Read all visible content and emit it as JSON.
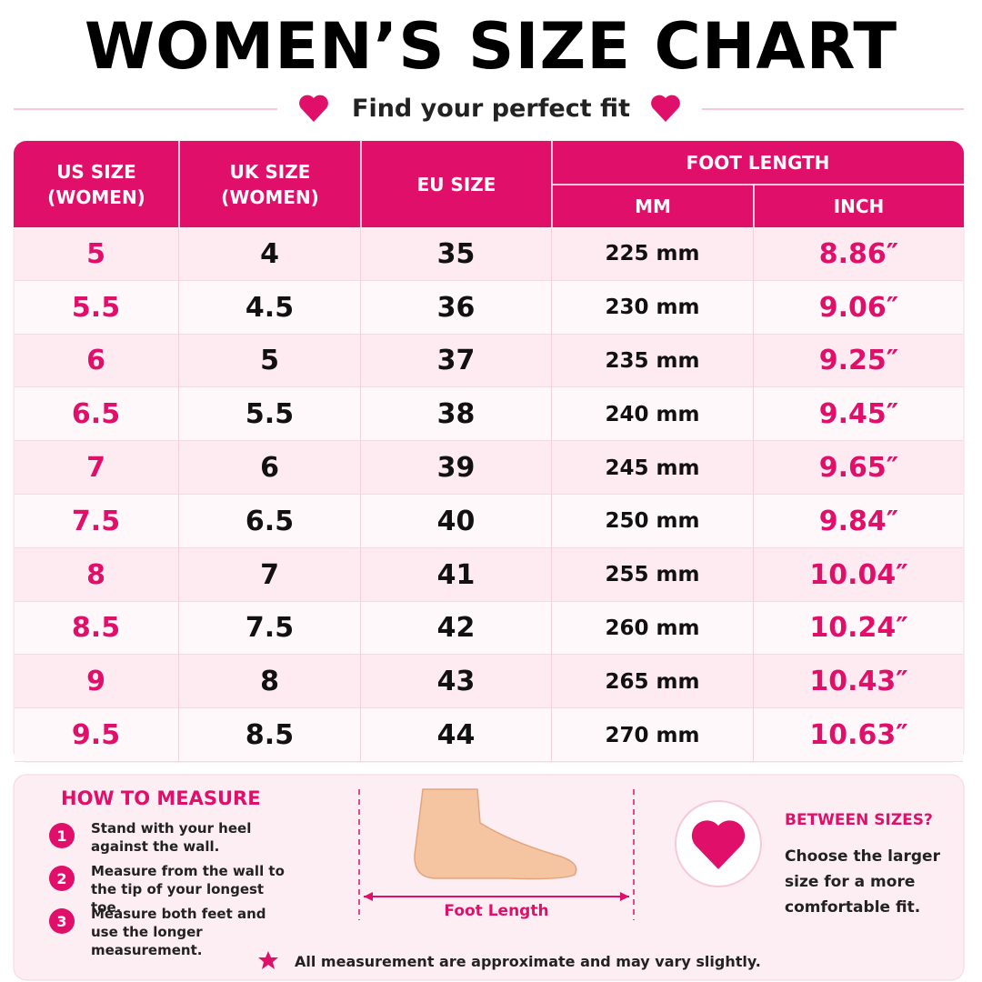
{
  "header": {
    "title": "WOMEN’S SIZE CHART",
    "subtitle": "Find your perfect fit"
  },
  "table": {
    "columns": [
      "US SIZE (WOMEN)",
      "UK SIZE (WOMEN)",
      "EU SIZE"
    ],
    "group": "FOOT LENGTH",
    "subcolumns": [
      "MM",
      "INCH"
    ],
    "rows": [
      [
        "5",
        "4",
        "35",
        "225 mm",
        "8.86″"
      ],
      [
        "5.5",
        "4.5",
        "36",
        "230 mm",
        "9.06″"
      ],
      [
        "6",
        "5",
        "37",
        "235 mm",
        "9.25″"
      ],
      [
        "6.5",
        "5.5",
        "38",
        "240 mm",
        "9.45″"
      ],
      [
        "7",
        "6",
        "39",
        "245 mm",
        "9.65″"
      ],
      [
        "7.5",
        "6.5",
        "40",
        "250 mm",
        "9.84″"
      ],
      [
        "8",
        "7",
        "41",
        "255 mm",
        "10.04″"
      ],
      [
        "8.5",
        "7.5",
        "42",
        "260 mm",
        "10.24″"
      ],
      [
        "9",
        "8",
        "43",
        "265 mm",
        "10.43″"
      ],
      [
        "9.5",
        "8.5",
        "44",
        "270 mm",
        "10.63″"
      ]
    ]
  },
  "measure": {
    "title": "HOW TO MEASURE",
    "steps": [
      {
        "number": "1",
        "text": "Stand with your heel against the wall."
      },
      {
        "number": "2",
        "text": "Measure from the wall to the tip of your longest toe."
      },
      {
        "number": "3",
        "text": "Measure both feet and use the longer measurement."
      }
    ],
    "diagram_label": "Foot Length"
  },
  "between": {
    "title": "BETWEEN SIZES?",
    "text": "Choose the larger size for a more comfortable fit."
  },
  "note": "All measurement are approximate and may vary slightly."
}
